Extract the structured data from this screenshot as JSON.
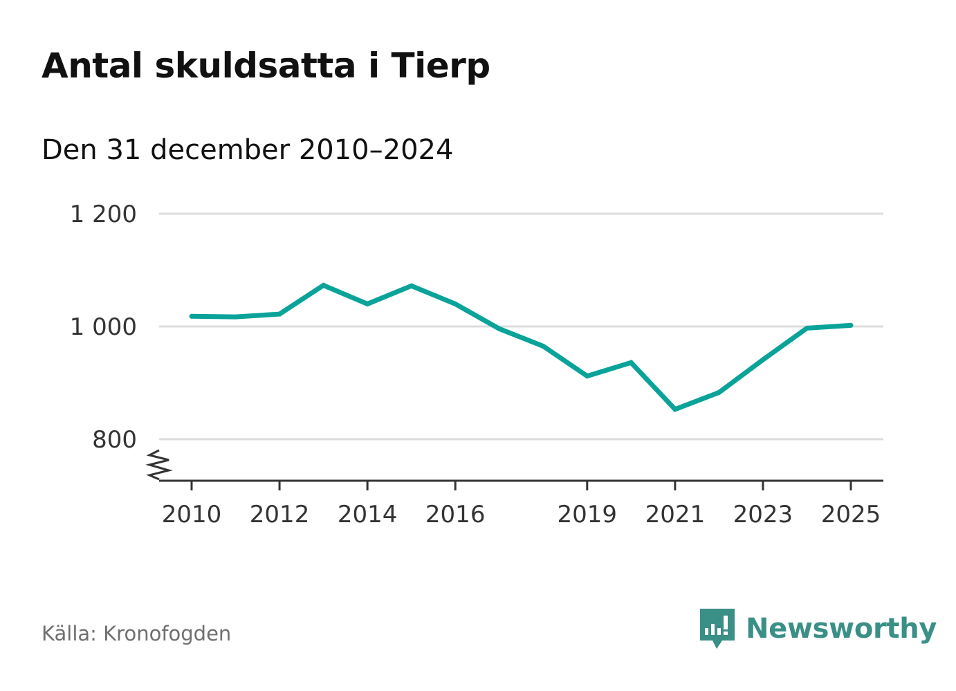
{
  "header": {
    "title": "Antal skuldsatta i Tierp",
    "subtitle": "Den 31 december 2010–2024"
  },
  "footer": {
    "source": "Källa: Kronofogden",
    "brand": "Newsworthy"
  },
  "colors": {
    "line": "#0aa39a",
    "grid": "#dcdcdc",
    "axis": "#333333",
    "brand": "#3a8f86"
  },
  "icons": {
    "brand_logo": "newsworthy-bar-chart-icon",
    "axis_break": "axis-break-icon"
  },
  "chart_data": {
    "type": "line",
    "title": "Antal skuldsatta i Tierp",
    "subtitle": "Den 31 december 2010–2024",
    "xlabel": "",
    "ylabel": "",
    "x": [
      2010,
      2011,
      2012,
      2013,
      2014,
      2015,
      2016,
      2017,
      2018,
      2019,
      2020,
      2021,
      2022,
      2023,
      2024,
      2025
    ],
    "series": [
      {
        "name": "Antal skuldsatta",
        "values": [
          1018,
          1017,
          1022,
          1073,
          1040,
          1072,
          1040,
          996,
          965,
          912,
          936,
          853,
          883,
          941,
          997,
          1002
        ]
      }
    ],
    "x_ticks": [
      2010,
      2012,
      2014,
      2016,
      2019,
      2021,
      2023,
      2025
    ],
    "x_tick_labels": [
      "2010",
      "2012",
      "2014",
      "2016",
      "2019",
      "2021",
      "2023",
      "2025"
    ],
    "y_ticks": [
      800,
      1000,
      1200
    ],
    "y_tick_labels": [
      "800",
      "1 000",
      "1 200"
    ],
    "xlim": [
      2010,
      2025
    ],
    "ylim": [
      725,
      1200
    ],
    "grid": true,
    "axis_break": true,
    "legend": "none"
  }
}
